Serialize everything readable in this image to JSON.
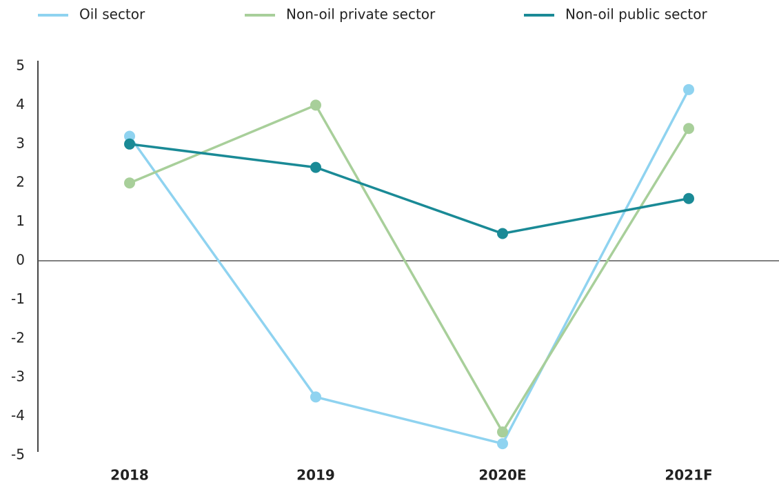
{
  "chart_data": {
    "type": "line",
    "categories": [
      "2018",
      "2019",
      "2020E",
      "2021F"
    ],
    "series": [
      {
        "name": "Oil sector",
        "color": "#8fd3f0",
        "values": [
          3.2,
          -3.5,
          -4.7,
          4.4
        ]
      },
      {
        "name": "Non-oil private sector",
        "color": "#a8cf9a",
        "values": [
          2.0,
          4.0,
          -4.4,
          3.4
        ]
      },
      {
        "name": "Non-oil public sector",
        "color": "#1a8a96",
        "values": [
          3.0,
          2.4,
          0.7,
          1.6
        ]
      }
    ],
    "ylim": [
      -5,
      5
    ],
    "yticks": [
      -5,
      -4,
      -3,
      -2,
      -1,
      0,
      1,
      2,
      3,
      4,
      5
    ],
    "legend": "top"
  }
}
